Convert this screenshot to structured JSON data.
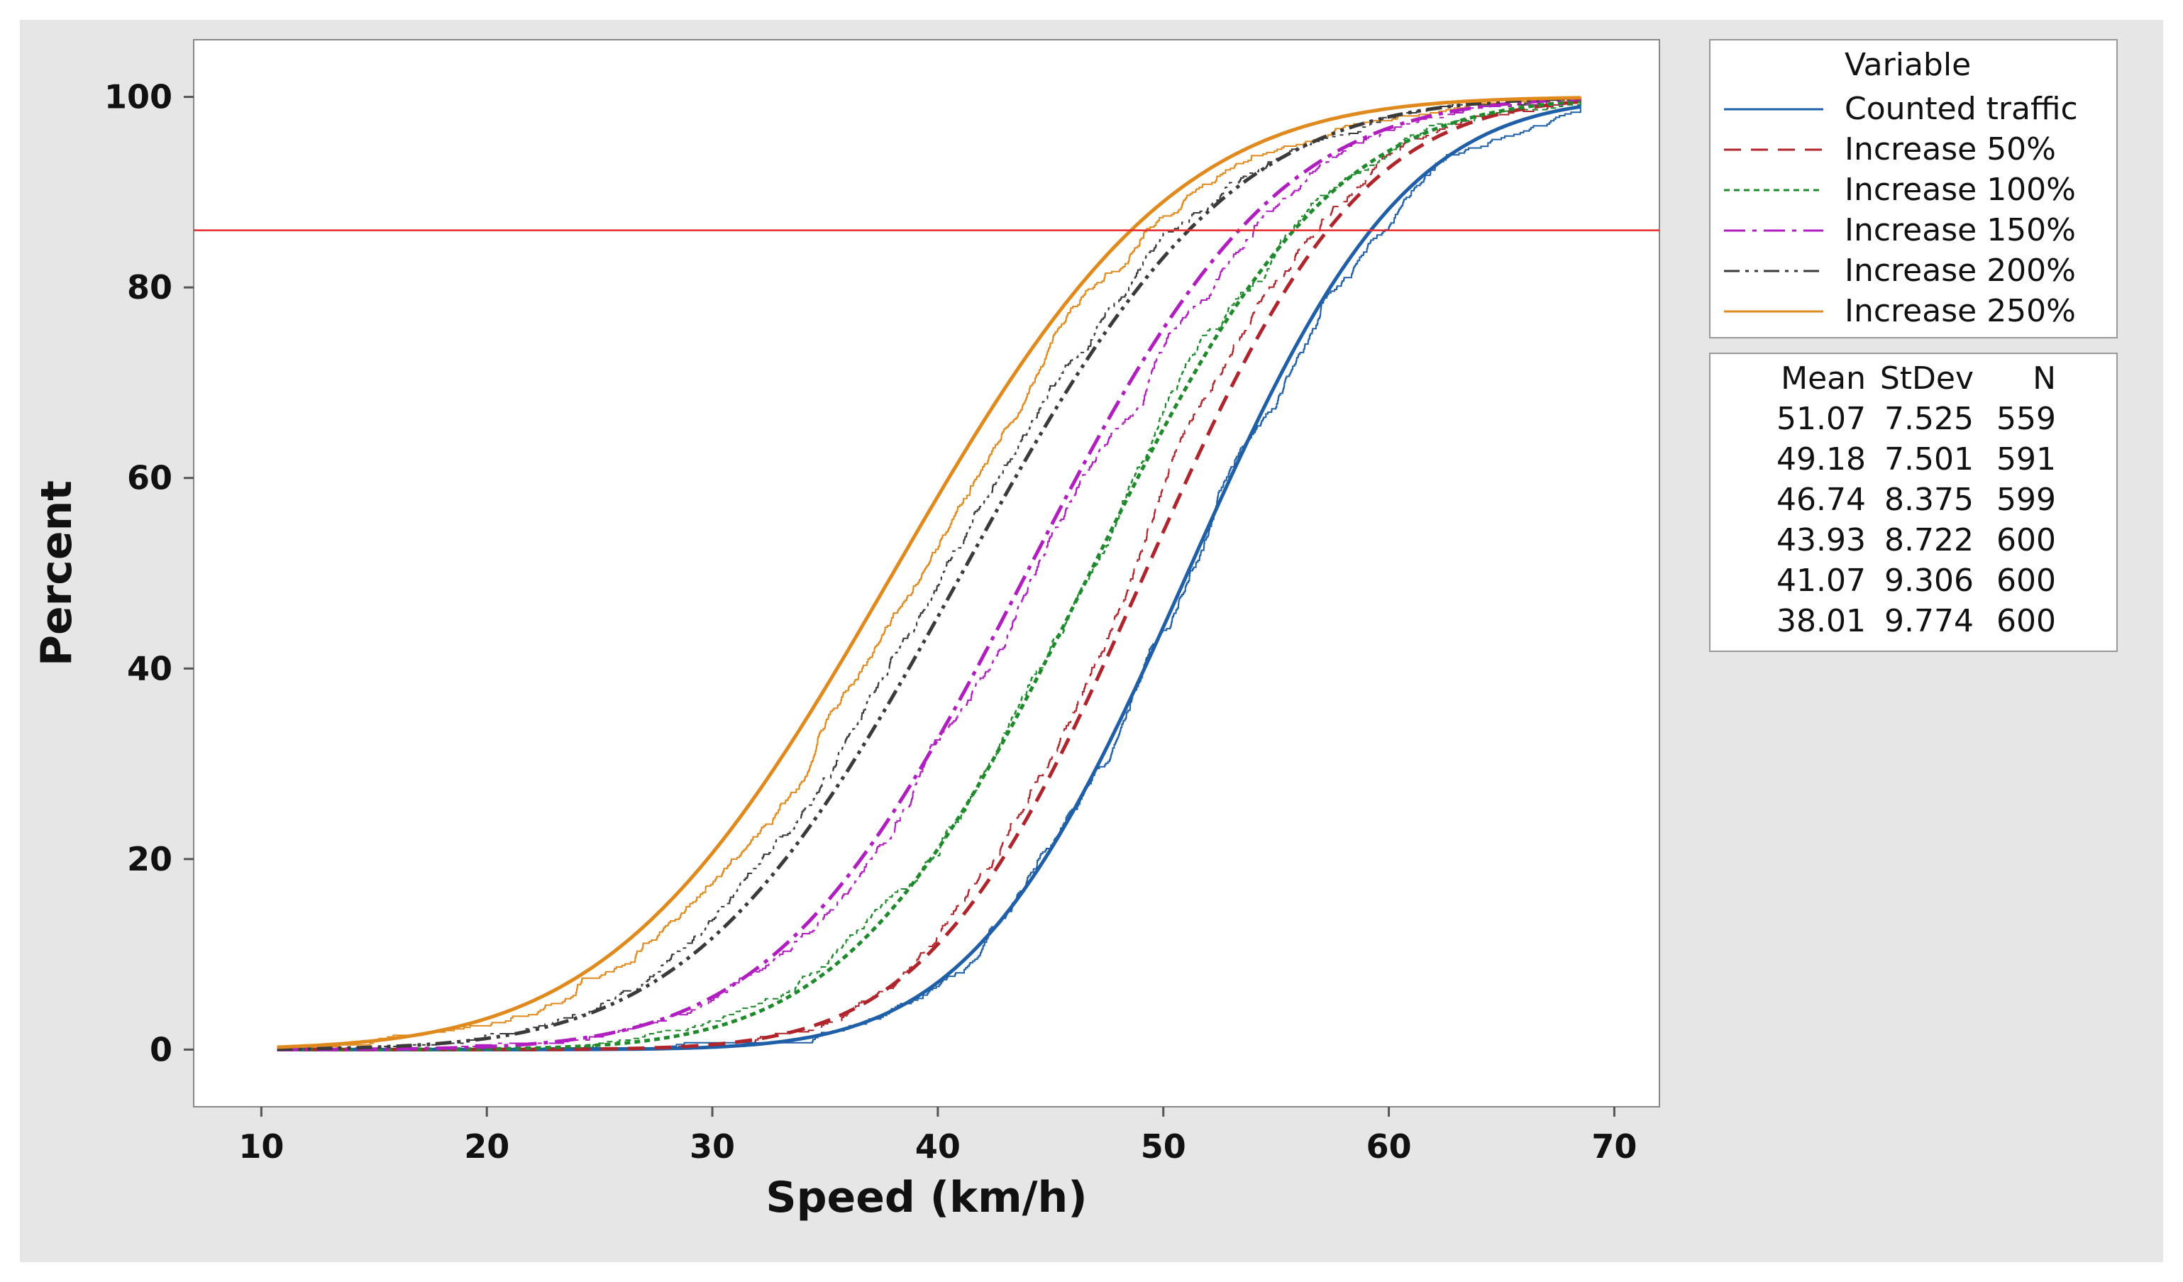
{
  "chart_data": {
    "type": "line",
    "title": "",
    "xlabel": "Speed (km/h)",
    "ylabel": "Percent",
    "xlim": [
      7,
      72
    ],
    "ylim": [
      -6,
      106
    ],
    "xticks": [
      10,
      20,
      30,
      40,
      50,
      60,
      70
    ],
    "yticks": [
      0,
      20,
      40,
      60,
      80,
      100
    ],
    "reference_line": {
      "y": 86,
      "color": "#e8282b"
    },
    "x_range": [
      10.7,
      68.5
    ],
    "legend": {
      "title": "Variable",
      "placement": "right-top"
    },
    "series": [
      {
        "name": "Counted traffic",
        "color": "#1f5fa8",
        "dash": "",
        "mean": 51.07,
        "stdev": 7.525,
        "n": 559
      },
      {
        "name": "Increase 50%",
        "color": "#b0242c",
        "dash": "24,14",
        "mean": 49.18,
        "stdev": 7.501,
        "n": 591
      },
      {
        "name": "Increase 100%",
        "color": "#1f8a2c",
        "dash": "8,6",
        "mean": 46.74,
        "stdev": 8.375,
        "n": 599
      },
      {
        "name": "Increase 150%",
        "color": "#b01ec0",
        "dash": "30,10,6,10",
        "mean": 43.93,
        "stdev": 8.722,
        "n": 600
      },
      {
        "name": "Increase 200%",
        "color": "#3a3a3a",
        "dash": "22,8,5,8,5,8",
        "mean": 41.07,
        "stdev": 9.306,
        "n": 600
      },
      {
        "name": "Increase 250%",
        "color": "#e08a1e",
        "dash": "",
        "mean": 38.01,
        "stdev": 9.774,
        "n": 600
      }
    ],
    "stats_table": {
      "headers": [
        "Mean",
        "StDev",
        "N"
      ],
      "rows": [
        [
          "51.07",
          "7.525",
          "559"
        ],
        [
          "49.18",
          "7.501",
          "591"
        ],
        [
          "46.74",
          "8.375",
          "599"
        ],
        [
          "43.93",
          "8.722",
          "600"
        ],
        [
          "41.07",
          "9.306",
          "600"
        ],
        [
          "38.01",
          "9.774",
          "600"
        ]
      ]
    }
  }
}
